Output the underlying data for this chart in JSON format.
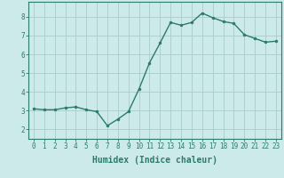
{
  "x": [
    0,
    1,
    2,
    3,
    4,
    5,
    6,
    7,
    8,
    9,
    10,
    11,
    12,
    13,
    14,
    15,
    16,
    17,
    18,
    19,
    20,
    21,
    22,
    23
  ],
  "y": [
    3.1,
    3.05,
    3.05,
    3.15,
    3.2,
    3.05,
    2.95,
    2.2,
    2.55,
    2.95,
    4.15,
    5.55,
    6.6,
    7.7,
    7.55,
    7.7,
    8.2,
    7.95,
    7.75,
    7.65,
    7.05,
    6.85,
    6.65,
    6.7
  ],
  "line_color": "#2d7a6e",
  "marker": "o",
  "markersize": 2.0,
  "linewidth": 1.0,
  "xlabel": "Humidex (Indice chaleur)",
  "xlabel_fontsize": 7,
  "background_color": "#cceaea",
  "grid_color": "#aacccc",
  "ylim": [
    1.5,
    8.8
  ],
  "xlim": [
    -0.5,
    23.5
  ],
  "yticks": [
    2,
    3,
    4,
    5,
    6,
    7,
    8
  ],
  "xticks": [
    0,
    1,
    2,
    3,
    4,
    5,
    6,
    7,
    8,
    9,
    10,
    11,
    12,
    13,
    14,
    15,
    16,
    17,
    18,
    19,
    20,
    21,
    22,
    23
  ],
  "tick_fontsize": 5.5,
  "tick_color": "#2d7a6e",
  "spine_color": "#2d7a6e"
}
